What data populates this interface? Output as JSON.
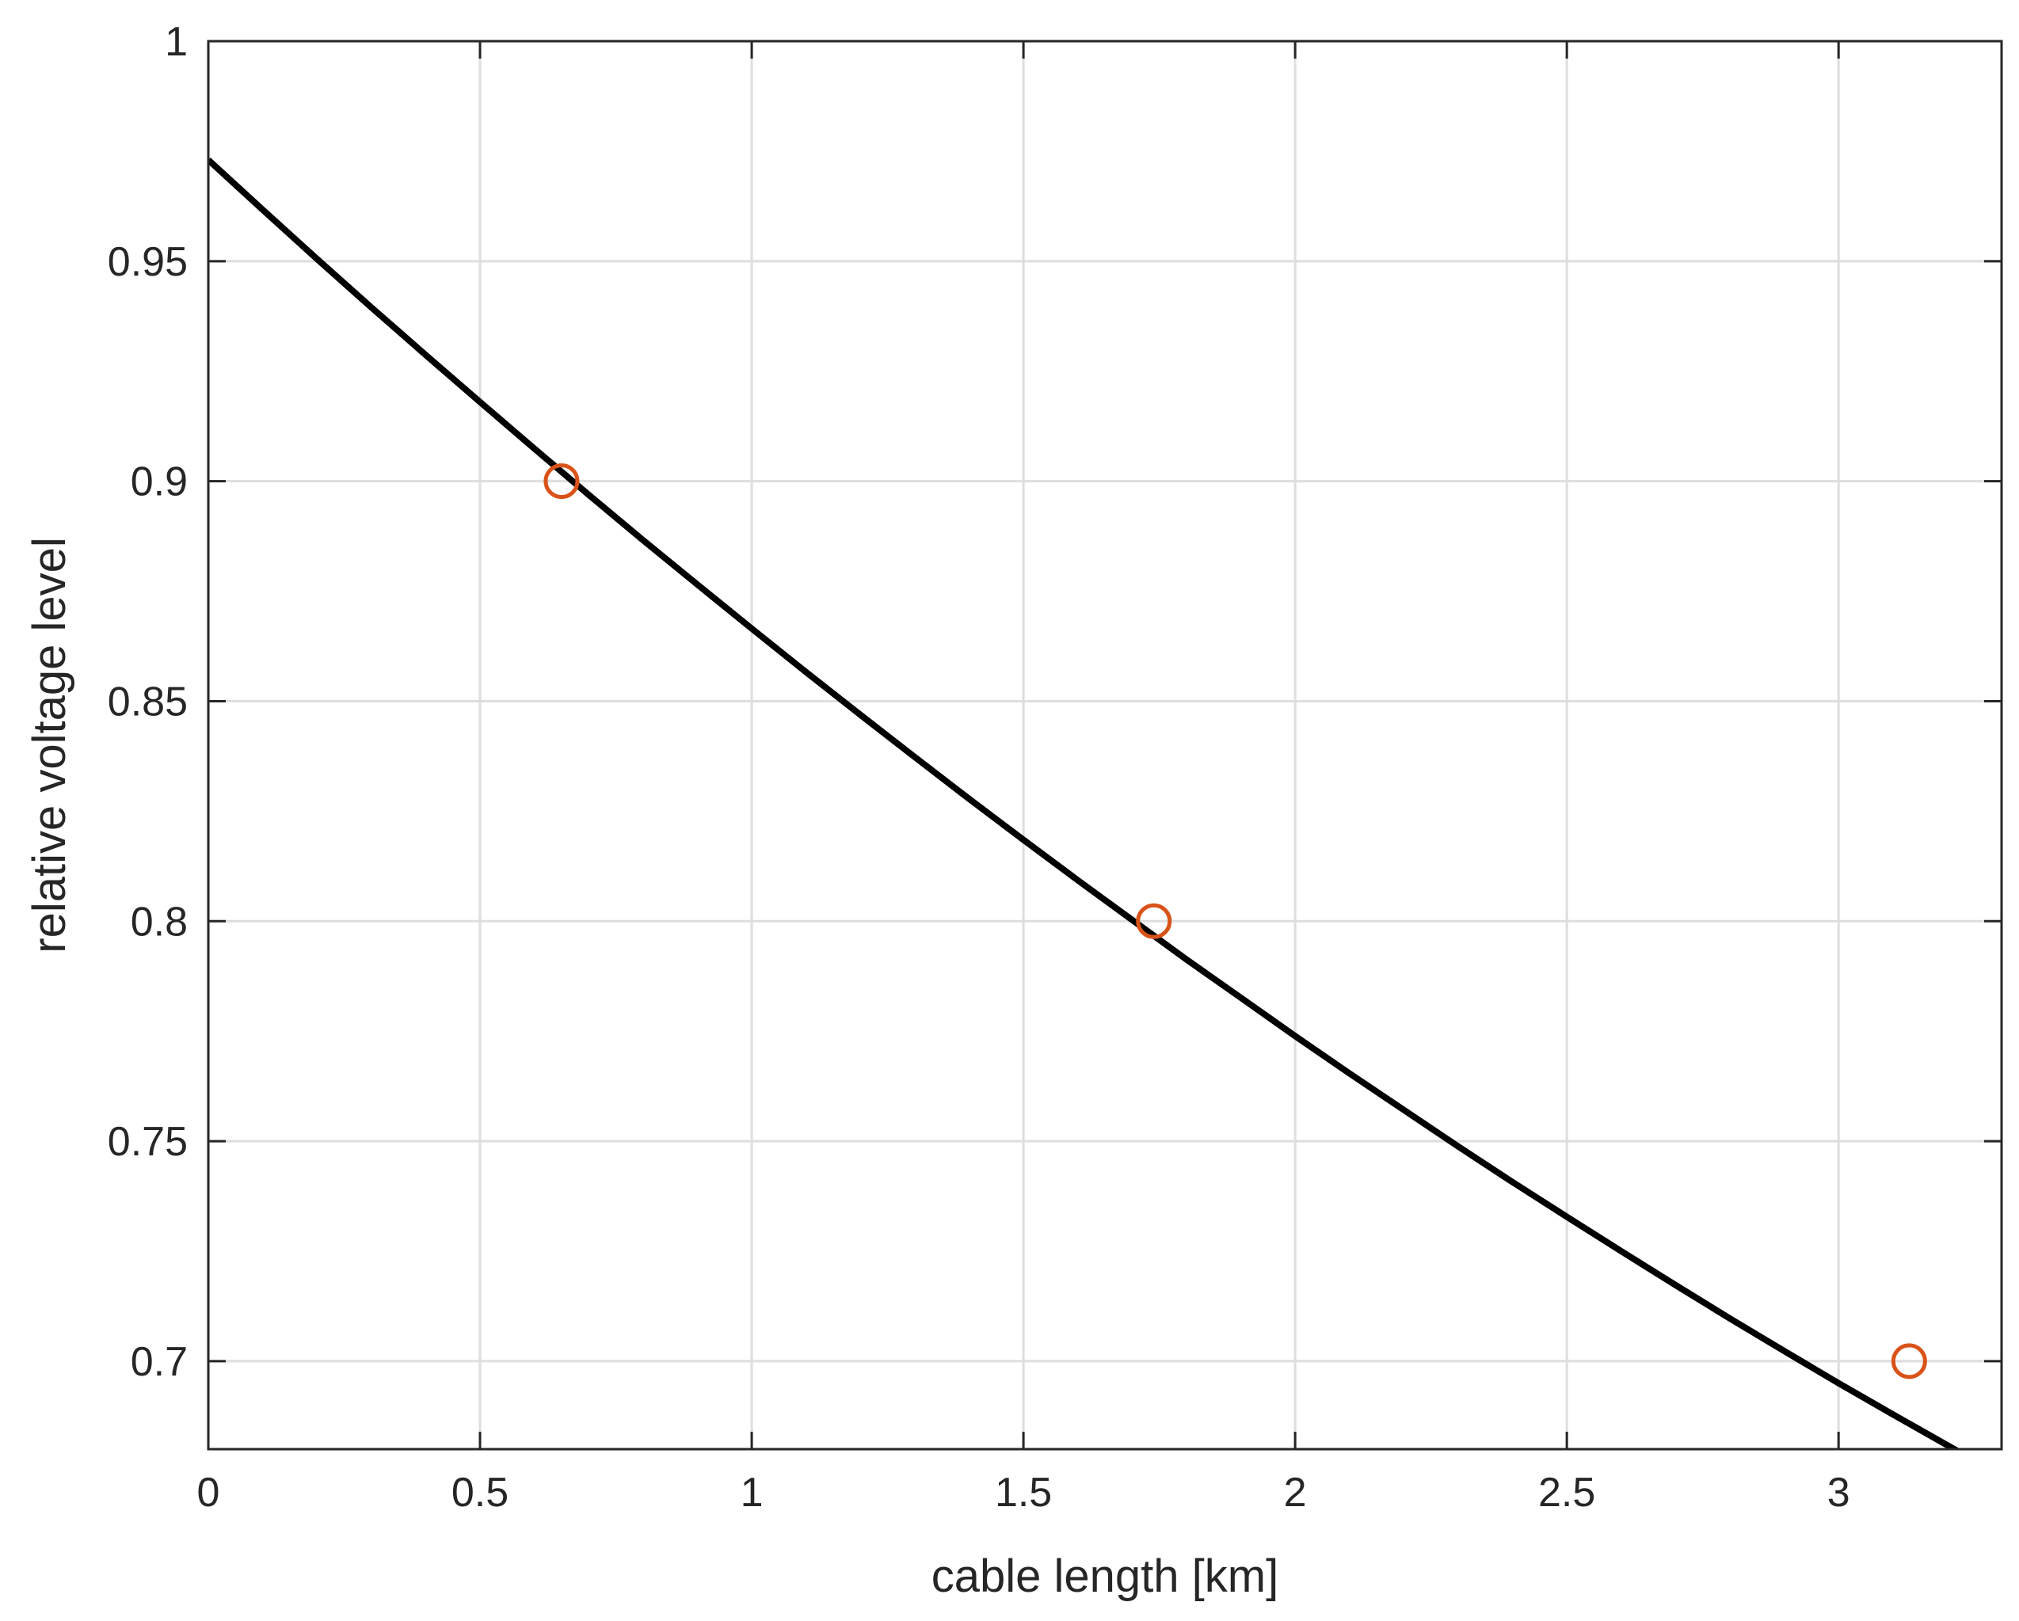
{
  "chart_data": {
    "type": "line",
    "title": "",
    "xlabel": "cable length [km]",
    "ylabel": "relative voltage level",
    "xlim": [
      0,
      3.3
    ],
    "ylim": [
      0.68,
      1.0
    ],
    "x_ticks": [
      0,
      0.5,
      1,
      1.5,
      2,
      2.5,
      3
    ],
    "x_tick_labels": [
      "0",
      "0.5",
      "1",
      "1.5",
      "2",
      "2.5",
      "3"
    ],
    "y_ticks": [
      0.7,
      0.75,
      0.8,
      0.85,
      0.9,
      0.95,
      1.0
    ],
    "y_tick_labels": [
      "0.7",
      "0.75",
      "0.8",
      "0.85",
      "0.9",
      "0.95",
      "1"
    ],
    "grid": true,
    "legend": "none",
    "series": [
      {
        "style": "line",
        "color": "#000000",
        "x": [
          0,
          0.1,
          0.2,
          0.3,
          0.4,
          0.5,
          0.6,
          0.7,
          0.8,
          0.9,
          1.0,
          1.1,
          1.2,
          1.3,
          1.4,
          1.5,
          1.6,
          1.7,
          1.8,
          1.9,
          2.0,
          2.1,
          2.2,
          2.3,
          2.4,
          2.5,
          2.6,
          2.7,
          2.8,
          2.9,
          3.0,
          3.1,
          3.2,
          3.3
        ],
        "y": [
          0.973,
          0.9617,
          0.9505,
          0.9395,
          0.9287,
          0.918,
          0.9074,
          0.8969,
          0.8866,
          0.8765,
          0.8665,
          0.8566,
          0.8469,
          0.8373,
          0.8278,
          0.8185,
          0.8093,
          0.8003,
          0.7913,
          0.7826,
          0.7739,
          0.7654,
          0.7571,
          0.7488,
          0.7407,
          0.7328,
          0.725,
          0.7173,
          0.7097,
          0.7023,
          0.695,
          0.6879,
          0.6809,
          0.674
        ]
      },
      {
        "style": "markers",
        "marker": "circle-open",
        "color": "#D95319",
        "x": [
          0.65,
          1.74,
          3.13
        ],
        "y": [
          0.9,
          0.8,
          0.7
        ]
      }
    ]
  }
}
